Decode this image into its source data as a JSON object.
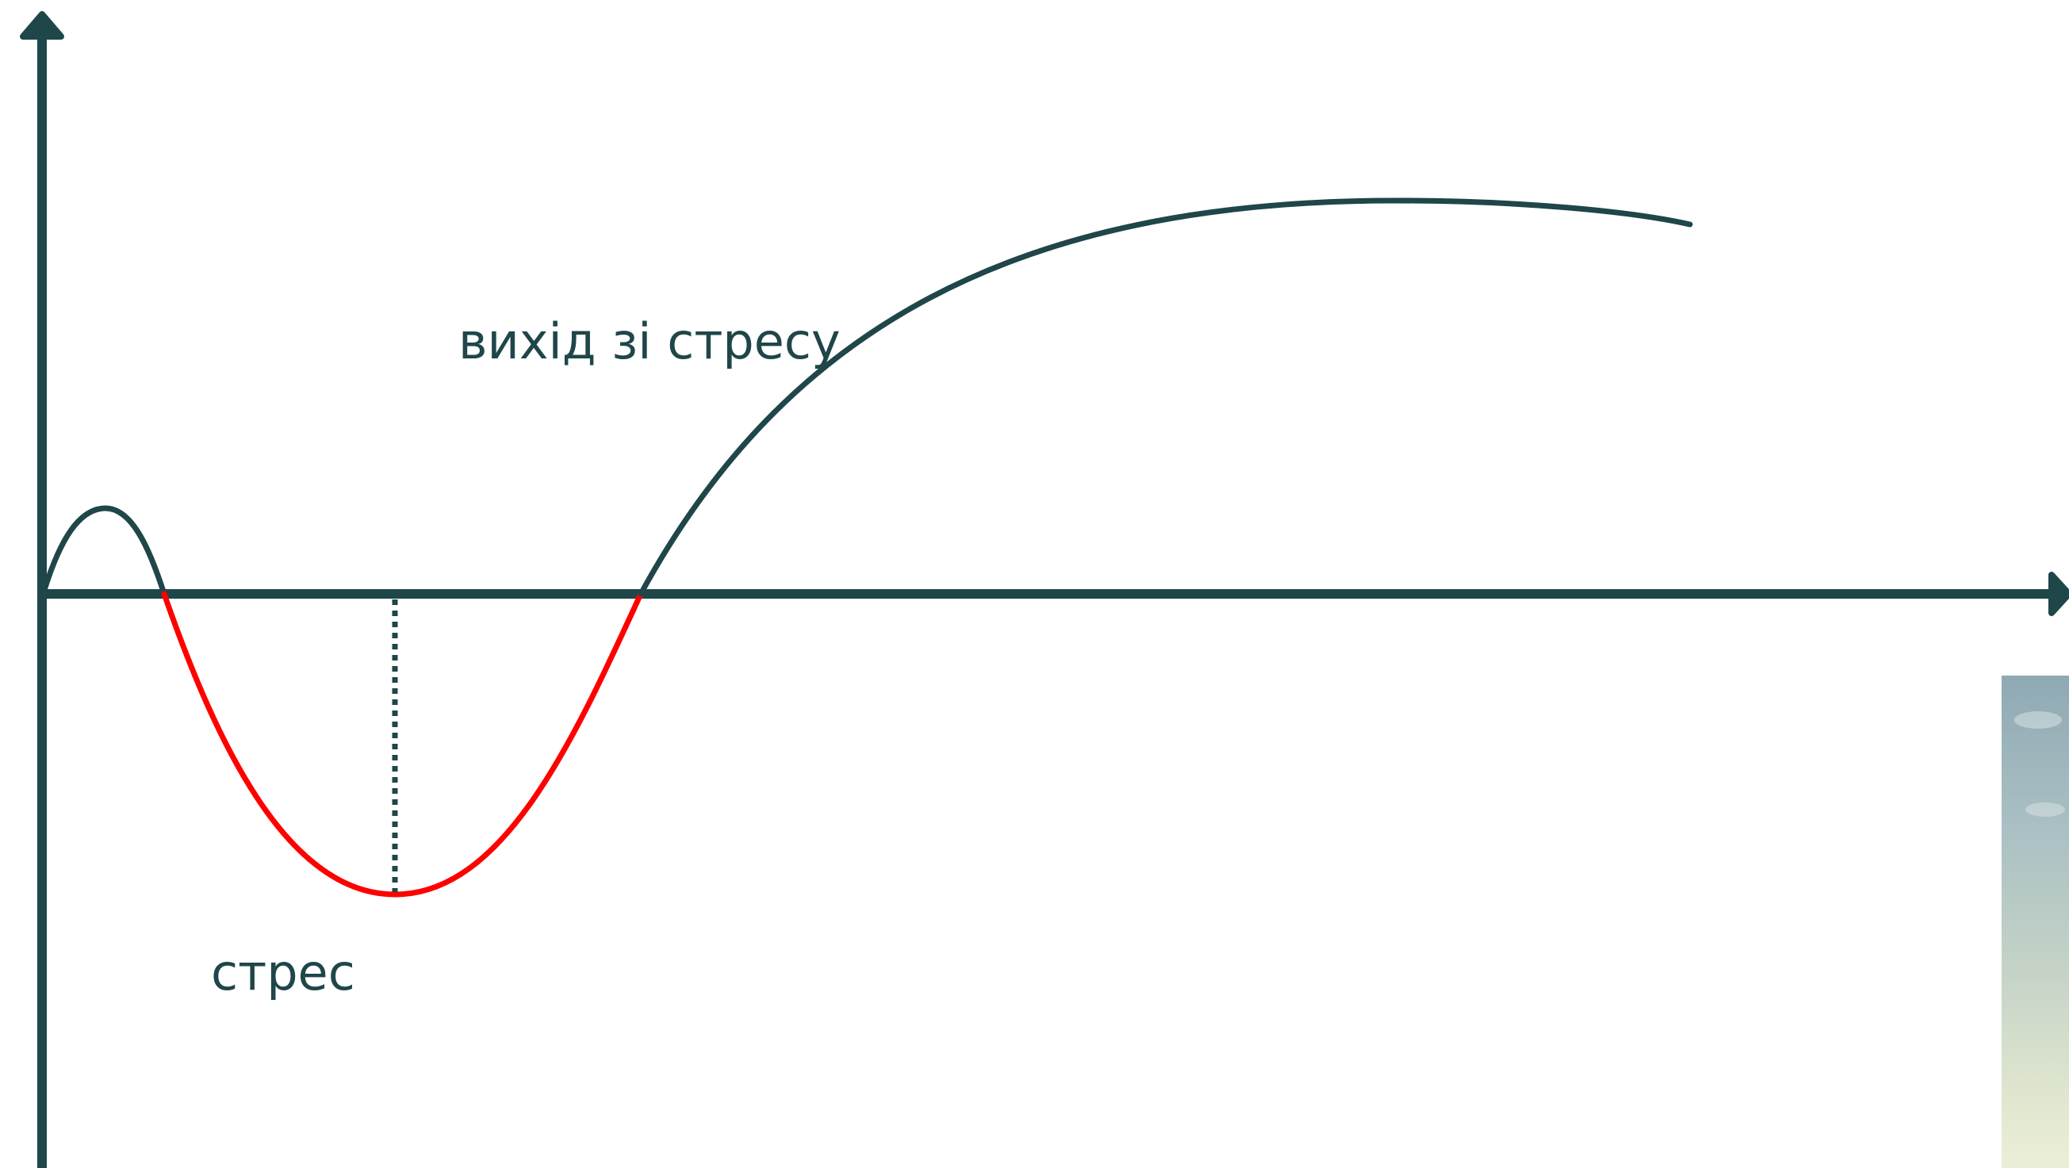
{
  "labels": {
    "recovery": "вихід зі стресу",
    "stress": "стрес"
  },
  "colors": {
    "axis": "#1f4649",
    "curve": "#1f4649",
    "stress_curve": "#ff0000",
    "text": "#1f4649"
  },
  "icons": {
    "y_axis_arrow": "arrow-up-icon",
    "x_axis_arrow": "arrow-right-icon"
  }
}
